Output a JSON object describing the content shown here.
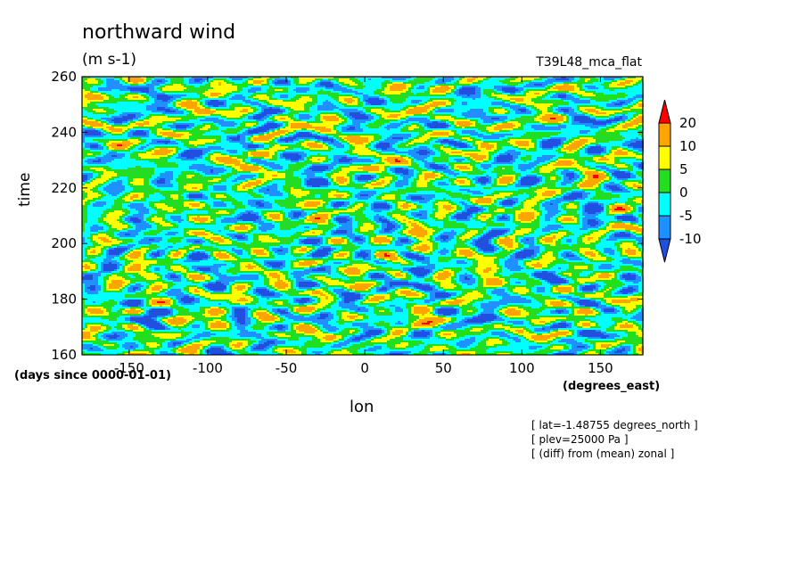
{
  "chart_data": {
    "type": "heatmap",
    "title": "northward wind",
    "units": "(m s-1)",
    "run_label": "T39L48_mca_flat",
    "xlabel": "lon",
    "x_units": "(degrees_east)",
    "ylabel": "time",
    "y_units": "(days since 0000-01-01)",
    "xlim": [
      -180,
      177
    ],
    "ylim": [
      160,
      260
    ],
    "x_ticks": [
      -150,
      -100,
      -50,
      0,
      50,
      100,
      150
    ],
    "y_ticks": [
      160,
      180,
      200,
      220,
      240,
      260
    ],
    "x_tick_labels": [
      "-150",
      "-100",
      "-50",
      "0",
      "50",
      "100",
      "150"
    ],
    "y_tick_labels": [
      "160",
      "180",
      "200",
      "220",
      "240",
      "260"
    ],
    "color_levels": [
      -10,
      -5,
      0,
      5,
      10,
      20
    ],
    "colorbar_labels": [
      "20",
      "10",
      "5",
      "0",
      "-5",
      "-10"
    ],
    "colors": [
      "#2050e0",
      "#1e90ff",
      "#00ffff",
      "#22dd22",
      "#ffff00",
      "#ffa500",
      "#ff0000"
    ],
    "annotations": [
      "[ lat=-1.48755 degrees_north ]",
      "[ plev=25000 Pa ]",
      "[ (diff) from (mean) zonal ]"
    ]
  }
}
